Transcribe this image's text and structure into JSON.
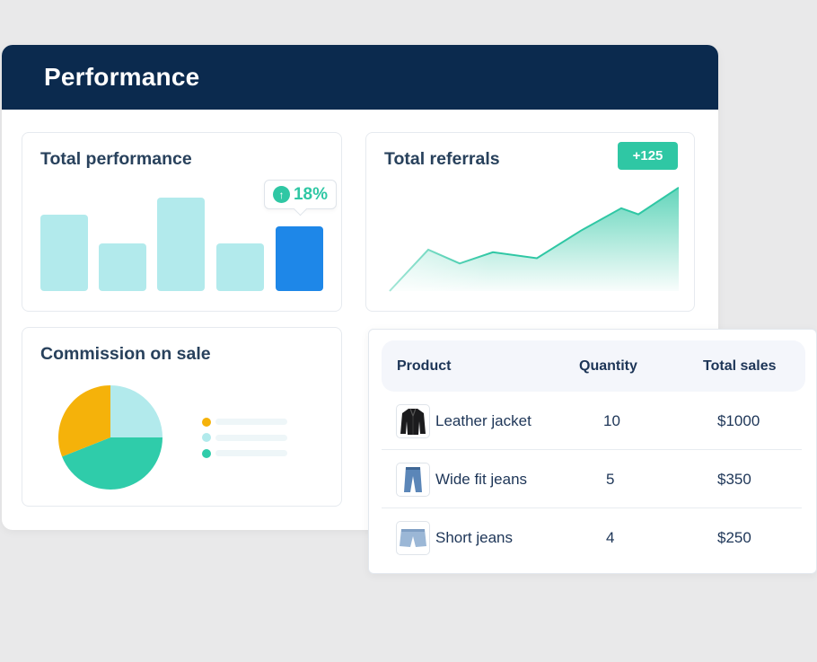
{
  "header": {
    "title": "Performance"
  },
  "total_performance": {
    "title": "Total performance",
    "change_percent": "18%",
    "chart_data": {
      "type": "bar",
      "values": [
        85,
        53,
        104,
        53,
        72
      ],
      "highlight_index": 4,
      "colors": {
        "default": "#b2eaec",
        "highlight": "#1e87e8"
      }
    }
  },
  "total_referrals": {
    "title": "Total referrals",
    "badge": "+125",
    "chart_data": {
      "type": "area",
      "values": [
        0,
        48,
        32,
        45,
        38,
        70,
        96,
        89,
        120
      ],
      "color": "#2fc7a4"
    }
  },
  "commission": {
    "title": "Commission on sale",
    "chart_data": {
      "type": "pie",
      "slices": [
        {
          "value": 25,
          "color": "#b2eaec"
        },
        {
          "value": 44,
          "color": "#2fccaa"
        },
        {
          "value": 31,
          "color": "#f5b20a"
        }
      ]
    },
    "legend_colors": [
      "#f5b20a",
      "#b2eaec",
      "#2fccaa"
    ]
  },
  "sales_table": {
    "columns": [
      "Product",
      "Quantity",
      "Total sales"
    ],
    "rows": [
      {
        "product": "Leather jacket",
        "quantity": "10",
        "total": "$1000",
        "icon": "leather-jacket-icon"
      },
      {
        "product": "Wide fit jeans",
        "quantity": "5",
        "total": "$350",
        "icon": "jeans-icon"
      },
      {
        "product": "Short jeans",
        "quantity": "4",
        "total": "$250",
        "icon": "shorts-icon"
      }
    ]
  }
}
